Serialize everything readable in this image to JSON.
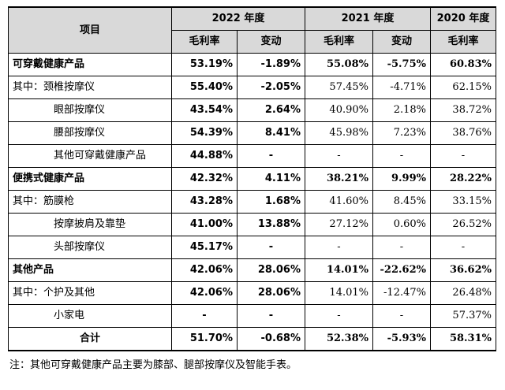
{
  "header": {
    "item": "项目",
    "years": [
      "2022 年度",
      "2021 年度",
      "2020 年度"
    ],
    "gross_margin": "毛利率",
    "change": "变动"
  },
  "rows": [
    {
      "label": "可穿戴健康产品",
      "v2022": "53.19%",
      "c2022": "-1.89%",
      "v2021": "55.08%",
      "c2021": "-5.75%",
      "v2020": "60.83%"
    },
    {
      "label": "其中：颈椎按摩仪",
      "v2022": "55.40%",
      "c2022": "-2.05%",
      "v2021": "57.45%",
      "c2021": "-4.71%",
      "v2020": "62.15%"
    },
    {
      "label": "眼部按摩仪",
      "v2022": "43.54%",
      "c2022": "2.64%",
      "v2021": "40.90%",
      "c2021": "2.18%",
      "v2020": "38.72%"
    },
    {
      "label": "腰部按摩仪",
      "v2022": "54.39%",
      "c2022": "8.41%",
      "v2021": "45.98%",
      "c2021": "7.23%",
      "v2020": "38.76%"
    },
    {
      "label": "其他可穿戴健康产品",
      "v2022": "44.88%",
      "c2022": "-",
      "v2021": "-",
      "c2021": "-",
      "v2020": "-"
    },
    {
      "label": "便携式健康产品",
      "v2022": "42.32%",
      "c2022": "4.11%",
      "v2021": "38.21%",
      "c2021": "9.99%",
      "v2020": "28.22%"
    },
    {
      "label": "其中：筋膜枪",
      "v2022": "43.28%",
      "c2022": "1.68%",
      "v2021": "41.60%",
      "c2021": "8.45%",
      "v2020": "33.15%"
    },
    {
      "label": "按摩披肩及靠垫",
      "v2022": "41.00%",
      "c2022": "13.88%",
      "v2021": "27.12%",
      "c2021": "0.60%",
      "v2020": "26.52%"
    },
    {
      "label": "头部按摩仪",
      "v2022": "45.17%",
      "c2022": "-",
      "v2021": "-",
      "c2021": "-",
      "v2020": "-"
    },
    {
      "label": "其他产品",
      "v2022": "42.06%",
      "c2022": "28.06%",
      "v2021": "14.01%",
      "c2021": "-22.62%",
      "v2020": "36.62%"
    },
    {
      "label": "其中：个护及其他",
      "v2022": "42.06%",
      "c2022": "28.06%",
      "v2021": "14.01%",
      "c2021": "-12.47%",
      "v2020": "26.48%"
    },
    {
      "label": "小家电",
      "v2022": "-",
      "c2022": "-",
      "v2021": "-",
      "c2021": "-",
      "v2020": "57.37%"
    },
    {
      "label": "合计",
      "v2022": "51.70%",
      "c2022": "-0.68%",
      "v2021": "52.38%",
      "c2021": "-5.93%",
      "v2020": "58.31%"
    }
  ],
  "note": "注：其他可穿戴健康产品主要为膝部、腿部按摩仪及智能手表。"
}
